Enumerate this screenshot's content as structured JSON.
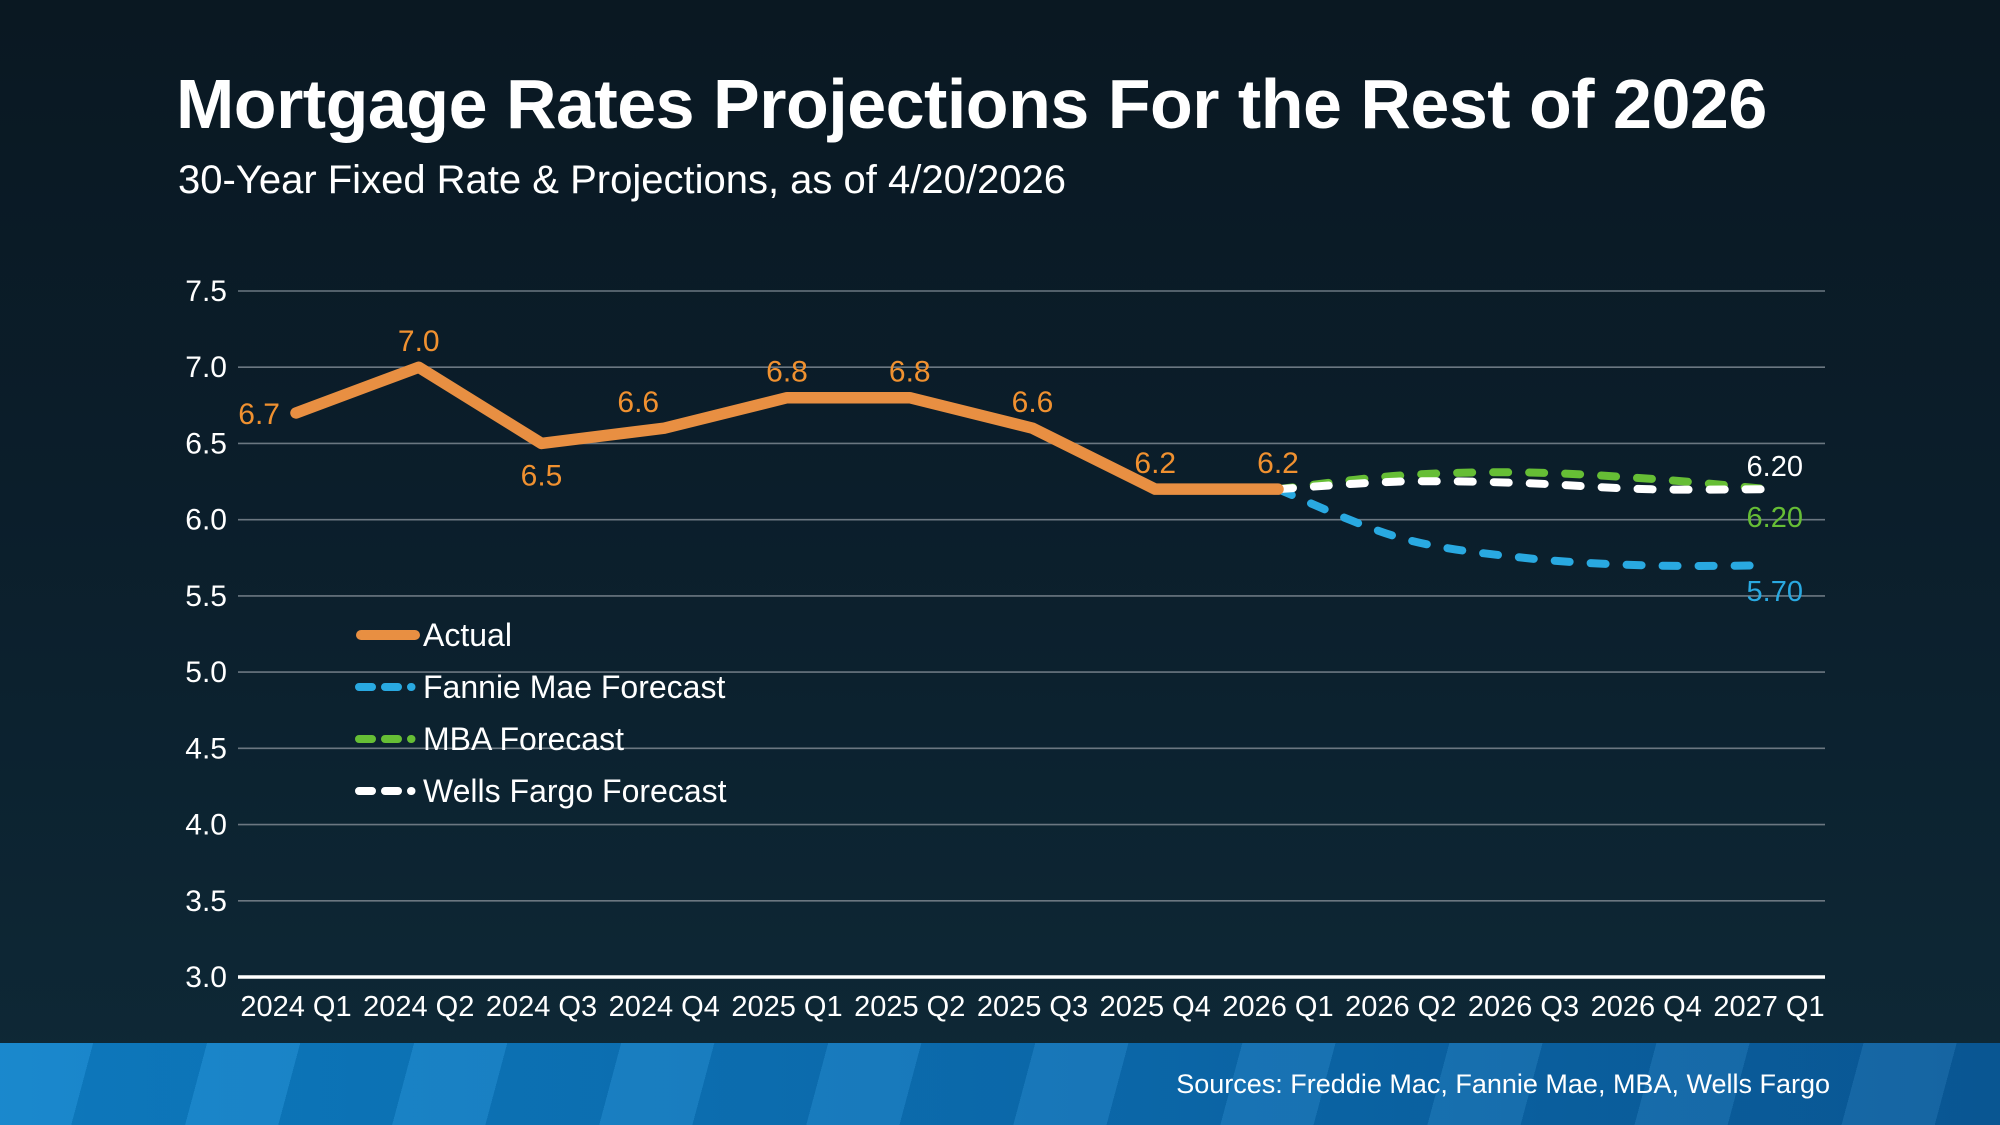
{
  "header": {
    "title": "Mortgage Rates Projections For the Rest of 2026",
    "subtitle": "30-Year Fixed Rate & Projections, as of 4/20/2026"
  },
  "chart_data": {
    "type": "line",
    "title": "Mortgage Rates Projections For the Rest of 2026",
    "subtitle": "30-Year Fixed Rate & Projections, as of 4/20/2026",
    "categories": [
      "2024 Q1",
      "2024 Q2",
      "2024 Q3",
      "2024 Q4",
      "2025 Q1",
      "2025 Q2",
      "2025 Q3",
      "2025 Q4",
      "2026 Q1",
      "2026 Q2",
      "2026 Q3",
      "2026 Q4",
      "2027 Q1"
    ],
    "ylim": [
      3.0,
      7.5
    ],
    "yticks": [
      7.5,
      7.0,
      6.5,
      6.0,
      5.5,
      5.0,
      4.5,
      4.0,
      3.5,
      3.0
    ],
    "grid": true,
    "legend_position": "middle-left",
    "gridline_color": "#6b7781",
    "axis_color": "#ffffff",
    "tick_label_color": "#ffffff",
    "data_label_color": "#f09130",
    "series": [
      {
        "name": "Actual",
        "color": "#e88f42",
        "style": "solid",
        "values": [
          6.7,
          7.0,
          6.5,
          6.6,
          6.8,
          6.8,
          6.6,
          6.2,
          6.2,
          null,
          null,
          null,
          null
        ],
        "data_labels": [
          "6.7",
          "7.0",
          "6.5",
          "6.6",
          "6.8",
          "6.8",
          "6.6",
          "6.2",
          "6.2"
        ],
        "label_pos": [
          "left",
          "above",
          "below",
          "above-left",
          "above",
          "above",
          "above",
          "above",
          "above"
        ]
      },
      {
        "name": "Fannie Mae Forecast",
        "color": "#29a9e1",
        "style": "dashed",
        "values": [
          null,
          null,
          null,
          null,
          null,
          null,
          null,
          null,
          6.2,
          5.88,
          5.75,
          5.7,
          5.7
        ],
        "end_label": "5.70"
      },
      {
        "name": "MBA Forecast",
        "color": "#66be35",
        "style": "dashed",
        "values": [
          null,
          null,
          null,
          null,
          null,
          null,
          null,
          null,
          6.2,
          6.29,
          6.31,
          6.27,
          6.2
        ],
        "end_label": "6.20"
      },
      {
        "name": "Wells Fargo Forecast",
        "color": "#ffffff",
        "style": "dashed",
        "values": [
          null,
          null,
          null,
          null,
          null,
          null,
          null,
          null,
          6.2,
          6.25,
          6.24,
          6.2,
          6.2
        ],
        "end_label": "6.20"
      }
    ]
  },
  "footer": {
    "sources": "Sources: Freddie Mac, Fannie Mae, MBA, Wells Fargo"
  }
}
